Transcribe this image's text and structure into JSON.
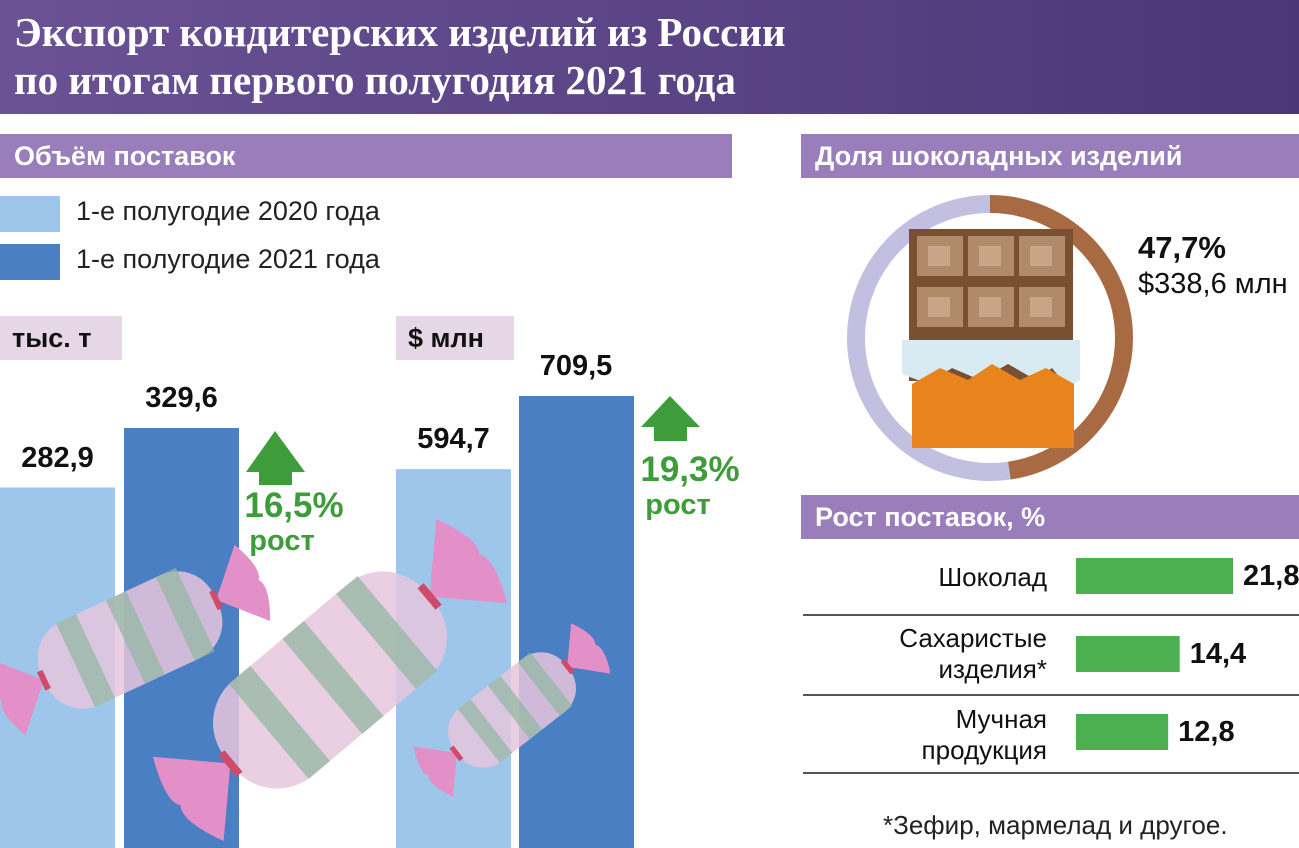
{
  "header": {
    "title_line1": "Экспорт кондитерских изделий из России",
    "title_line2": "по итогам первого полугодия 2021 года"
  },
  "volume_section": {
    "title": "Объём поставок",
    "legend": [
      {
        "label": "1-е полугодие 2020 года",
        "color": "#9dc6ea"
      },
      {
        "label": "1-е полугодие 2021 года",
        "color": "#4a7fc3"
      }
    ]
  },
  "share_section": {
    "title": "Доля шоколадных изделий"
  },
  "growth_section": {
    "title": "Рост поставок, %"
  },
  "colors": {
    "header": "#57417f",
    "section": "#9a7dbb",
    "bar_2020": "#9dc6ea",
    "bar_2021": "#4a7fc3",
    "growth_green": "#3f9c3a",
    "hbar_green": "#4caf50",
    "pie_chocolate": "#a86a42",
    "pie_rest": "#c2bfe0"
  },
  "chart_data": [
    {
      "type": "bar",
      "unit": "тыс. т",
      "categories": [
        "1-е полугодие 2020 года",
        "1-е полугодие 2021 года"
      ],
      "values": [
        282.9,
        329.6
      ],
      "value_labels": [
        "282,9",
        "329,6"
      ],
      "growth": {
        "pct": "16,5%",
        "word": "рост"
      }
    },
    {
      "type": "bar",
      "unit": "$ млн",
      "categories": [
        "1-е полугодие 2020 года",
        "1-е полугодие 2021 года"
      ],
      "values": [
        594.7,
        709.5
      ],
      "value_labels": [
        "594,7",
        "709,5"
      ],
      "growth": {
        "pct": "19,3%",
        "word": "рост"
      }
    },
    {
      "type": "pie",
      "slices": [
        {
          "value": 47.7,
          "label": "47,7%",
          "amount": "$338,6 млн"
        },
        {
          "value": 52.3
        }
      ]
    },
    {
      "type": "bar",
      "orientation": "horizontal",
      "categories": [
        {
          "lines": [
            "Шоколад"
          ]
        },
        {
          "lines": [
            "Сахаристые",
            "изделия*"
          ]
        },
        {
          "lines": [
            "Мучная",
            "продукция"
          ]
        }
      ],
      "values": [
        21.8,
        14.4,
        12.8
      ],
      "value_labels": [
        "21,8",
        "14,4",
        "12,8"
      ]
    }
  ],
  "footnote": "*Зефир, мармелад и другое."
}
